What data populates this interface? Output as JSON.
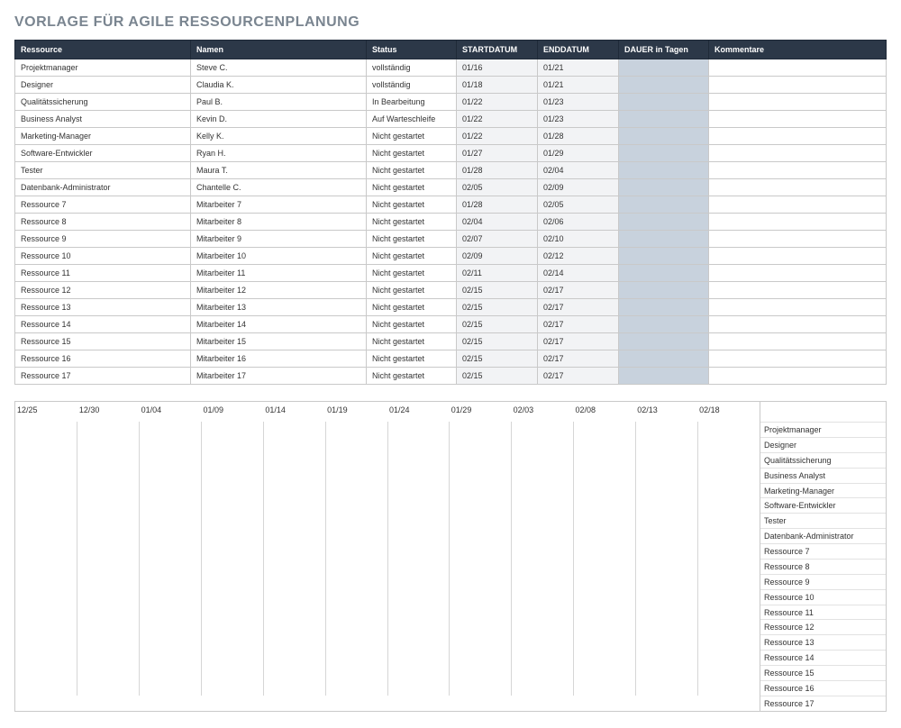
{
  "title": "VORLAGE FÜR AGILE RESSOURCENPLANUNG",
  "columns": {
    "resource": "Ressource",
    "name": "Namen",
    "status": "Status",
    "start": "STARTDATUM",
    "end": "ENDDATUM",
    "dauer": "DAUER  in Tagen",
    "comment": "Kommentare"
  },
  "colors": {
    "header_bg": "#2c3848",
    "header_fg": "#ffffff",
    "date_bg": "#f2f3f5",
    "dauer_bg": "#c8d2dd",
    "border": "#c9c9c9",
    "title_fg": "#7a8590"
  },
  "rows": [
    {
      "resource": "Projektmanager",
      "name": "Steve C.",
      "status": "vollständig",
      "start": "01/16",
      "end": "01/21",
      "dauer": "",
      "comment": ""
    },
    {
      "resource": "Designer",
      "name": "Claudia K.",
      "status": "vollständig",
      "start": "01/18",
      "end": "01/21",
      "dauer": "",
      "comment": ""
    },
    {
      "resource": "Qualitätssicherung",
      "name": "Paul B.",
      "status": "In Bearbeitung",
      "start": "01/22",
      "end": "01/23",
      "dauer": "",
      "comment": ""
    },
    {
      "resource": "Business Analyst",
      "name": "Kevin D.",
      "status": "Auf Warteschleife",
      "start": "01/22",
      "end": "01/23",
      "dauer": "",
      "comment": "",
      "wrap": true
    },
    {
      "resource": "Marketing-Manager",
      "name": "Kelly K.",
      "status": "Nicht gestartet",
      "start": "01/22",
      "end": "01/28",
      "dauer": "",
      "comment": ""
    },
    {
      "resource": "Software-Entwickler",
      "name": "Ryan H.",
      "status": "Nicht gestartet",
      "start": "01/27",
      "end": "01/29",
      "dauer": "",
      "comment": ""
    },
    {
      "resource": "Tester",
      "name": "Maura T.",
      "status": "Nicht gestartet",
      "start": "01/28",
      "end": "02/04",
      "dauer": "",
      "comment": ""
    },
    {
      "resource": "Datenbank-Administrator",
      "name": "Chantelle C.",
      "status": "Nicht gestartet",
      "start": "02/05",
      "end": "02/09",
      "dauer": "",
      "comment": ""
    },
    {
      "resource": "Ressource 7",
      "name": "Mitarbeiter 7",
      "status": "Nicht gestartet",
      "start": "01/28",
      "end": "02/05",
      "dauer": "",
      "comment": ""
    },
    {
      "resource": "Ressource 8",
      "name": "Mitarbeiter 8",
      "status": "Nicht gestartet",
      "start": "02/04",
      "end": "02/06",
      "dauer": "",
      "comment": ""
    },
    {
      "resource": "Ressource 9",
      "name": "Mitarbeiter 9",
      "status": "Nicht gestartet",
      "start": "02/07",
      "end": "02/10",
      "dauer": "",
      "comment": ""
    },
    {
      "resource": "Ressource 10",
      "name": "Mitarbeiter 10",
      "status": "Nicht gestartet",
      "start": "02/09",
      "end": "02/12",
      "dauer": "",
      "comment": ""
    },
    {
      "resource": "Ressource 11",
      "name": "Mitarbeiter 11",
      "status": "Nicht gestartet",
      "start": "02/11",
      "end": "02/14",
      "dauer": "",
      "comment": ""
    },
    {
      "resource": "Ressource 12",
      "name": "Mitarbeiter 12",
      "status": "Nicht gestartet",
      "start": "02/15",
      "end": "02/17",
      "dauer": "",
      "comment": ""
    },
    {
      "resource": "Ressource 13",
      "name": "Mitarbeiter 13",
      "status": "Nicht gestartet",
      "start": "02/15",
      "end": "02/17",
      "dauer": "",
      "comment": ""
    },
    {
      "resource": "Ressource 14",
      "name": "Mitarbeiter 14",
      "status": "Nicht gestartet",
      "start": "02/15",
      "end": "02/17",
      "dauer": "",
      "comment": ""
    },
    {
      "resource": "Ressource 15",
      "name": "Mitarbeiter 15",
      "status": "Nicht gestartet",
      "start": "02/15",
      "end": "02/17",
      "dauer": "",
      "comment": ""
    },
    {
      "resource": "Ressource 16",
      "name": "Mitarbeiter 16",
      "status": "Nicht gestartet",
      "start": "02/15",
      "end": "02/17",
      "dauer": "",
      "comment": ""
    },
    {
      "resource": "Ressource 17",
      "name": "Mitarbeiter 17",
      "status": "Nicht gestartet",
      "start": "02/15",
      "end": "02/17",
      "dauer": "",
      "comment": ""
    }
  ],
  "gantt": {
    "ticks": [
      "12/25",
      "12/30",
      "01/04",
      "01/09",
      "01/14",
      "01/19",
      "01/24",
      "01/29",
      "02/03",
      "02/08",
      "02/13",
      "02/18"
    ],
    "legend": [
      "Projektmanager",
      "Designer",
      "Qualitätssicherung",
      "Business Analyst",
      "Marketing-Manager",
      "Software-Entwickler",
      "Tester",
      "Datenbank-Administrator",
      "Ressource 7",
      "Ressource 8",
      "Ressource 9",
      "Ressource 10",
      "Ressource 11",
      "Ressource 12",
      "Ressource 13",
      "Ressource 14",
      "Ressource 15",
      "Ressource 16",
      "Ressource 17"
    ]
  }
}
